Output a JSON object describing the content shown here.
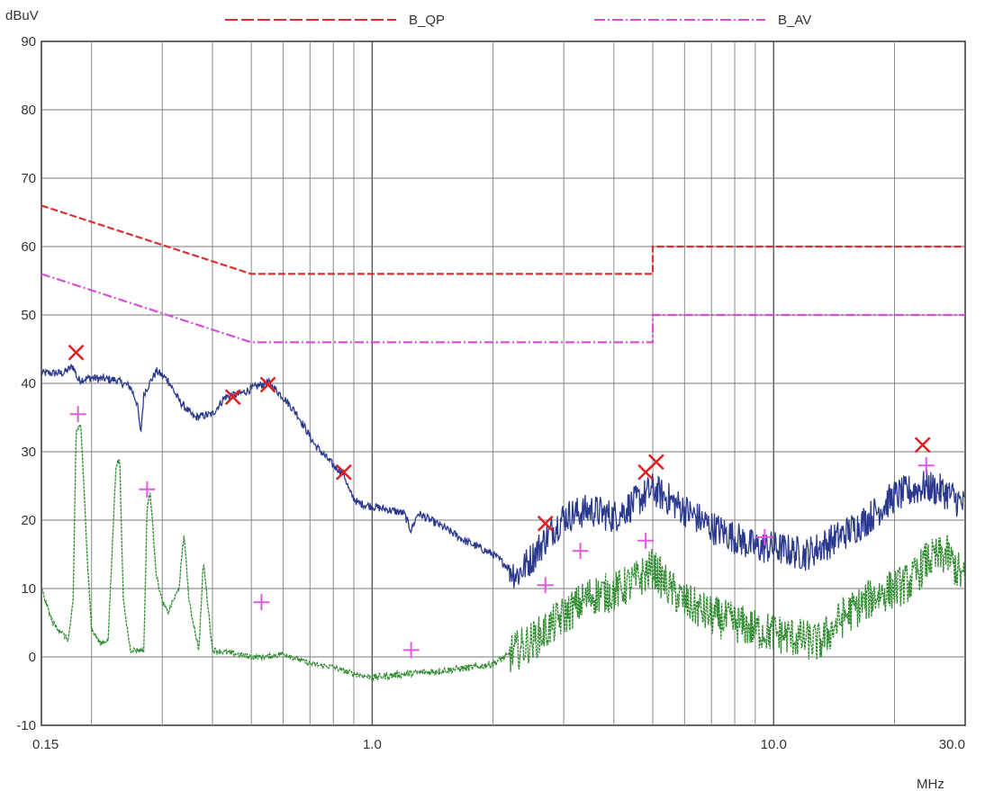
{
  "chart_data": {
    "type": "line",
    "title": "",
    "ylabel": "dBuV",
    "xlabel": "MHz",
    "x_scale": "log",
    "xlim": [
      0.15,
      30.0
    ],
    "ylim": [
      -10,
      90
    ],
    "grid": true,
    "legend_placement": "top",
    "x_tick_labels": [
      {
        "value": 0.15,
        "label": "0.15"
      },
      {
        "value": 1.0,
        "label": "1.0"
      },
      {
        "value": 10.0,
        "label": "10.0"
      },
      {
        "value": 30.0,
        "label": "30.0"
      }
    ],
    "y_ticks": [
      -10,
      0,
      10,
      20,
      30,
      40,
      50,
      60,
      70,
      80,
      90
    ],
    "legend": [
      {
        "name": "B_QP",
        "color": "#d93030",
        "dash": "dashed"
      },
      {
        "name": "B_AV",
        "color": "#d64fd6",
        "dash": "dashdot"
      }
    ],
    "limit_lines": [
      {
        "name": "B_QP",
        "color": "#d93030",
        "points": [
          [
            0.15,
            66
          ],
          [
            0.5,
            56
          ],
          [
            5.0,
            56
          ],
          [
            5.0,
            60
          ],
          [
            30.0,
            60
          ]
        ]
      },
      {
        "name": "B_AV",
        "color": "#d64fd6",
        "points": [
          [
            0.15,
            56
          ],
          [
            0.5,
            46
          ],
          [
            5.0,
            46
          ],
          [
            5.0,
            50
          ],
          [
            30.0,
            50
          ]
        ]
      }
    ],
    "series": [
      {
        "color": "#2b3a8f",
        "noise": [
          0.6,
          0.6,
          2.5
        ],
        "points": [
          [
            0.15,
            41.5
          ],
          [
            0.17,
            41.5
          ],
          [
            0.18,
            42.5
          ],
          [
            0.185,
            40.5
          ],
          [
            0.2,
            40.8
          ],
          [
            0.23,
            40.5
          ],
          [
            0.25,
            39.5
          ],
          [
            0.26,
            37
          ],
          [
            0.265,
            32.5
          ],
          [
            0.27,
            38.5
          ],
          [
            0.29,
            41.8
          ],
          [
            0.31,
            40.5
          ],
          [
            0.33,
            37.5
          ],
          [
            0.36,
            35.0
          ],
          [
            0.4,
            35.5
          ],
          [
            0.43,
            38.0
          ],
          [
            0.47,
            38.5
          ],
          [
            0.5,
            39.2
          ],
          [
            0.55,
            40.2
          ],
          [
            0.6,
            38.0
          ],
          [
            0.65,
            35.5
          ],
          [
            0.72,
            31.0
          ],
          [
            0.8,
            28.0
          ],
          [
            0.85,
            26.8
          ],
          [
            0.88,
            24.0
          ],
          [
            0.92,
            22.5
          ],
          [
            1.0,
            22.0
          ],
          [
            1.1,
            21.5
          ],
          [
            1.2,
            21.0
          ],
          [
            1.25,
            18.5
          ],
          [
            1.3,
            21.0
          ],
          [
            1.5,
            19.0
          ],
          [
            1.7,
            17.0
          ],
          [
            2.0,
            15.0
          ],
          [
            2.3,
            12.0
          ],
          [
            2.5,
            14.5
          ],
          [
            2.8,
            18.5
          ],
          [
            3.0,
            20.5
          ],
          [
            3.5,
            21.5
          ],
          [
            4.0,
            20.5
          ],
          [
            4.5,
            22.5
          ],
          [
            5.0,
            24.5
          ],
          [
            5.5,
            23.0
          ],
          [
            6.0,
            21.5
          ],
          [
            7.0,
            19.0
          ],
          [
            8.0,
            17.5
          ],
          [
            9.0,
            16.0
          ],
          [
            10.0,
            16.0
          ],
          [
            11.0,
            15.5
          ],
          [
            12.0,
            15.0
          ],
          [
            13.0,
            16.0
          ],
          [
            15.0,
            18.0
          ],
          [
            17.0,
            20.0
          ],
          [
            20.0,
            23.5
          ],
          [
            24.0,
            25.0
          ],
          [
            27.0,
            24.0
          ],
          [
            30.0,
            22.0
          ]
        ]
      },
      {
        "color": "#2e8b2e",
        "noise": [
          0.4,
          0.5,
          3.0
        ],
        "points": [
          [
            0.15,
            10.0
          ],
          [
            0.16,
            5.0
          ],
          [
            0.175,
            2.5
          ],
          [
            0.18,
            8.0
          ],
          [
            0.183,
            33.0
          ],
          [
            0.188,
            34.0
          ],
          [
            0.195,
            15.0
          ],
          [
            0.2,
            4.0
          ],
          [
            0.21,
            2.0
          ],
          [
            0.22,
            2.5
          ],
          [
            0.23,
            28.0
          ],
          [
            0.235,
            29.0
          ],
          [
            0.24,
            8.0
          ],
          [
            0.25,
            1.0
          ],
          [
            0.27,
            1.0
          ],
          [
            0.275,
            22.0
          ],
          [
            0.28,
            24.0
          ],
          [
            0.29,
            12.0
          ],
          [
            0.3,
            8.0
          ],
          [
            0.31,
            6.5
          ],
          [
            0.33,
            10.0
          ],
          [
            0.34,
            18.0
          ],
          [
            0.35,
            8.0
          ],
          [
            0.37,
            1.0
          ],
          [
            0.38,
            14.0
          ],
          [
            0.4,
            1.0
          ],
          [
            0.45,
            0.5
          ],
          [
            0.5,
            0.0
          ],
          [
            0.55,
            0.0
          ],
          [
            0.6,
            0.5
          ],
          [
            0.7,
            -1.0
          ],
          [
            0.8,
            -1.5
          ],
          [
            0.9,
            -2.5
          ],
          [
            1.0,
            -3.0
          ],
          [
            1.2,
            -2.5
          ],
          [
            1.5,
            -2.0
          ],
          [
            1.8,
            -1.5
          ],
          [
            2.0,
            -1.0
          ],
          [
            2.3,
            1.0
          ],
          [
            2.6,
            3.0
          ],
          [
            3.0,
            6.0
          ],
          [
            3.5,
            9.0
          ],
          [
            4.0,
            9.5
          ],
          [
            4.5,
            11.0
          ],
          [
            5.0,
            13.0
          ],
          [
            5.5,
            10.0
          ],
          [
            6.0,
            8.0
          ],
          [
            7.0,
            6.0
          ],
          [
            8.0,
            5.0
          ],
          [
            9.0,
            4.0
          ],
          [
            10.0,
            3.5
          ],
          [
            11.0,
            3.0
          ],
          [
            12.0,
            2.5
          ],
          [
            13.0,
            2.0
          ],
          [
            15.0,
            6.0
          ],
          [
            18.0,
            9.0
          ],
          [
            20.0,
            10.0
          ],
          [
            22.0,
            11.0
          ],
          [
            24.0,
            14.0
          ],
          [
            27.0,
            15.0
          ],
          [
            30.0,
            11.0
          ]
        ]
      }
    ],
    "qp_markers": {
      "color": "#e02020",
      "points": [
        [
          0.183,
          44.5
        ],
        [
          0.45,
          38.0
        ],
        [
          0.55,
          39.8
        ],
        [
          0.85,
          27.0
        ],
        [
          2.7,
          19.5
        ],
        [
          4.8,
          27.0
        ],
        [
          5.1,
          28.5
        ],
        [
          23.5,
          31.0
        ]
      ]
    },
    "av_markers": {
      "color": "#e05ae0",
      "points": [
        [
          0.185,
          35.5
        ],
        [
          0.275,
          24.5
        ],
        [
          0.53,
          8.0
        ],
        [
          1.25,
          1.0
        ],
        [
          2.7,
          10.5
        ],
        [
          3.3,
          15.5
        ],
        [
          4.8,
          17.0
        ],
        [
          9.5,
          17.5
        ],
        [
          24.0,
          28.0
        ]
      ]
    }
  }
}
